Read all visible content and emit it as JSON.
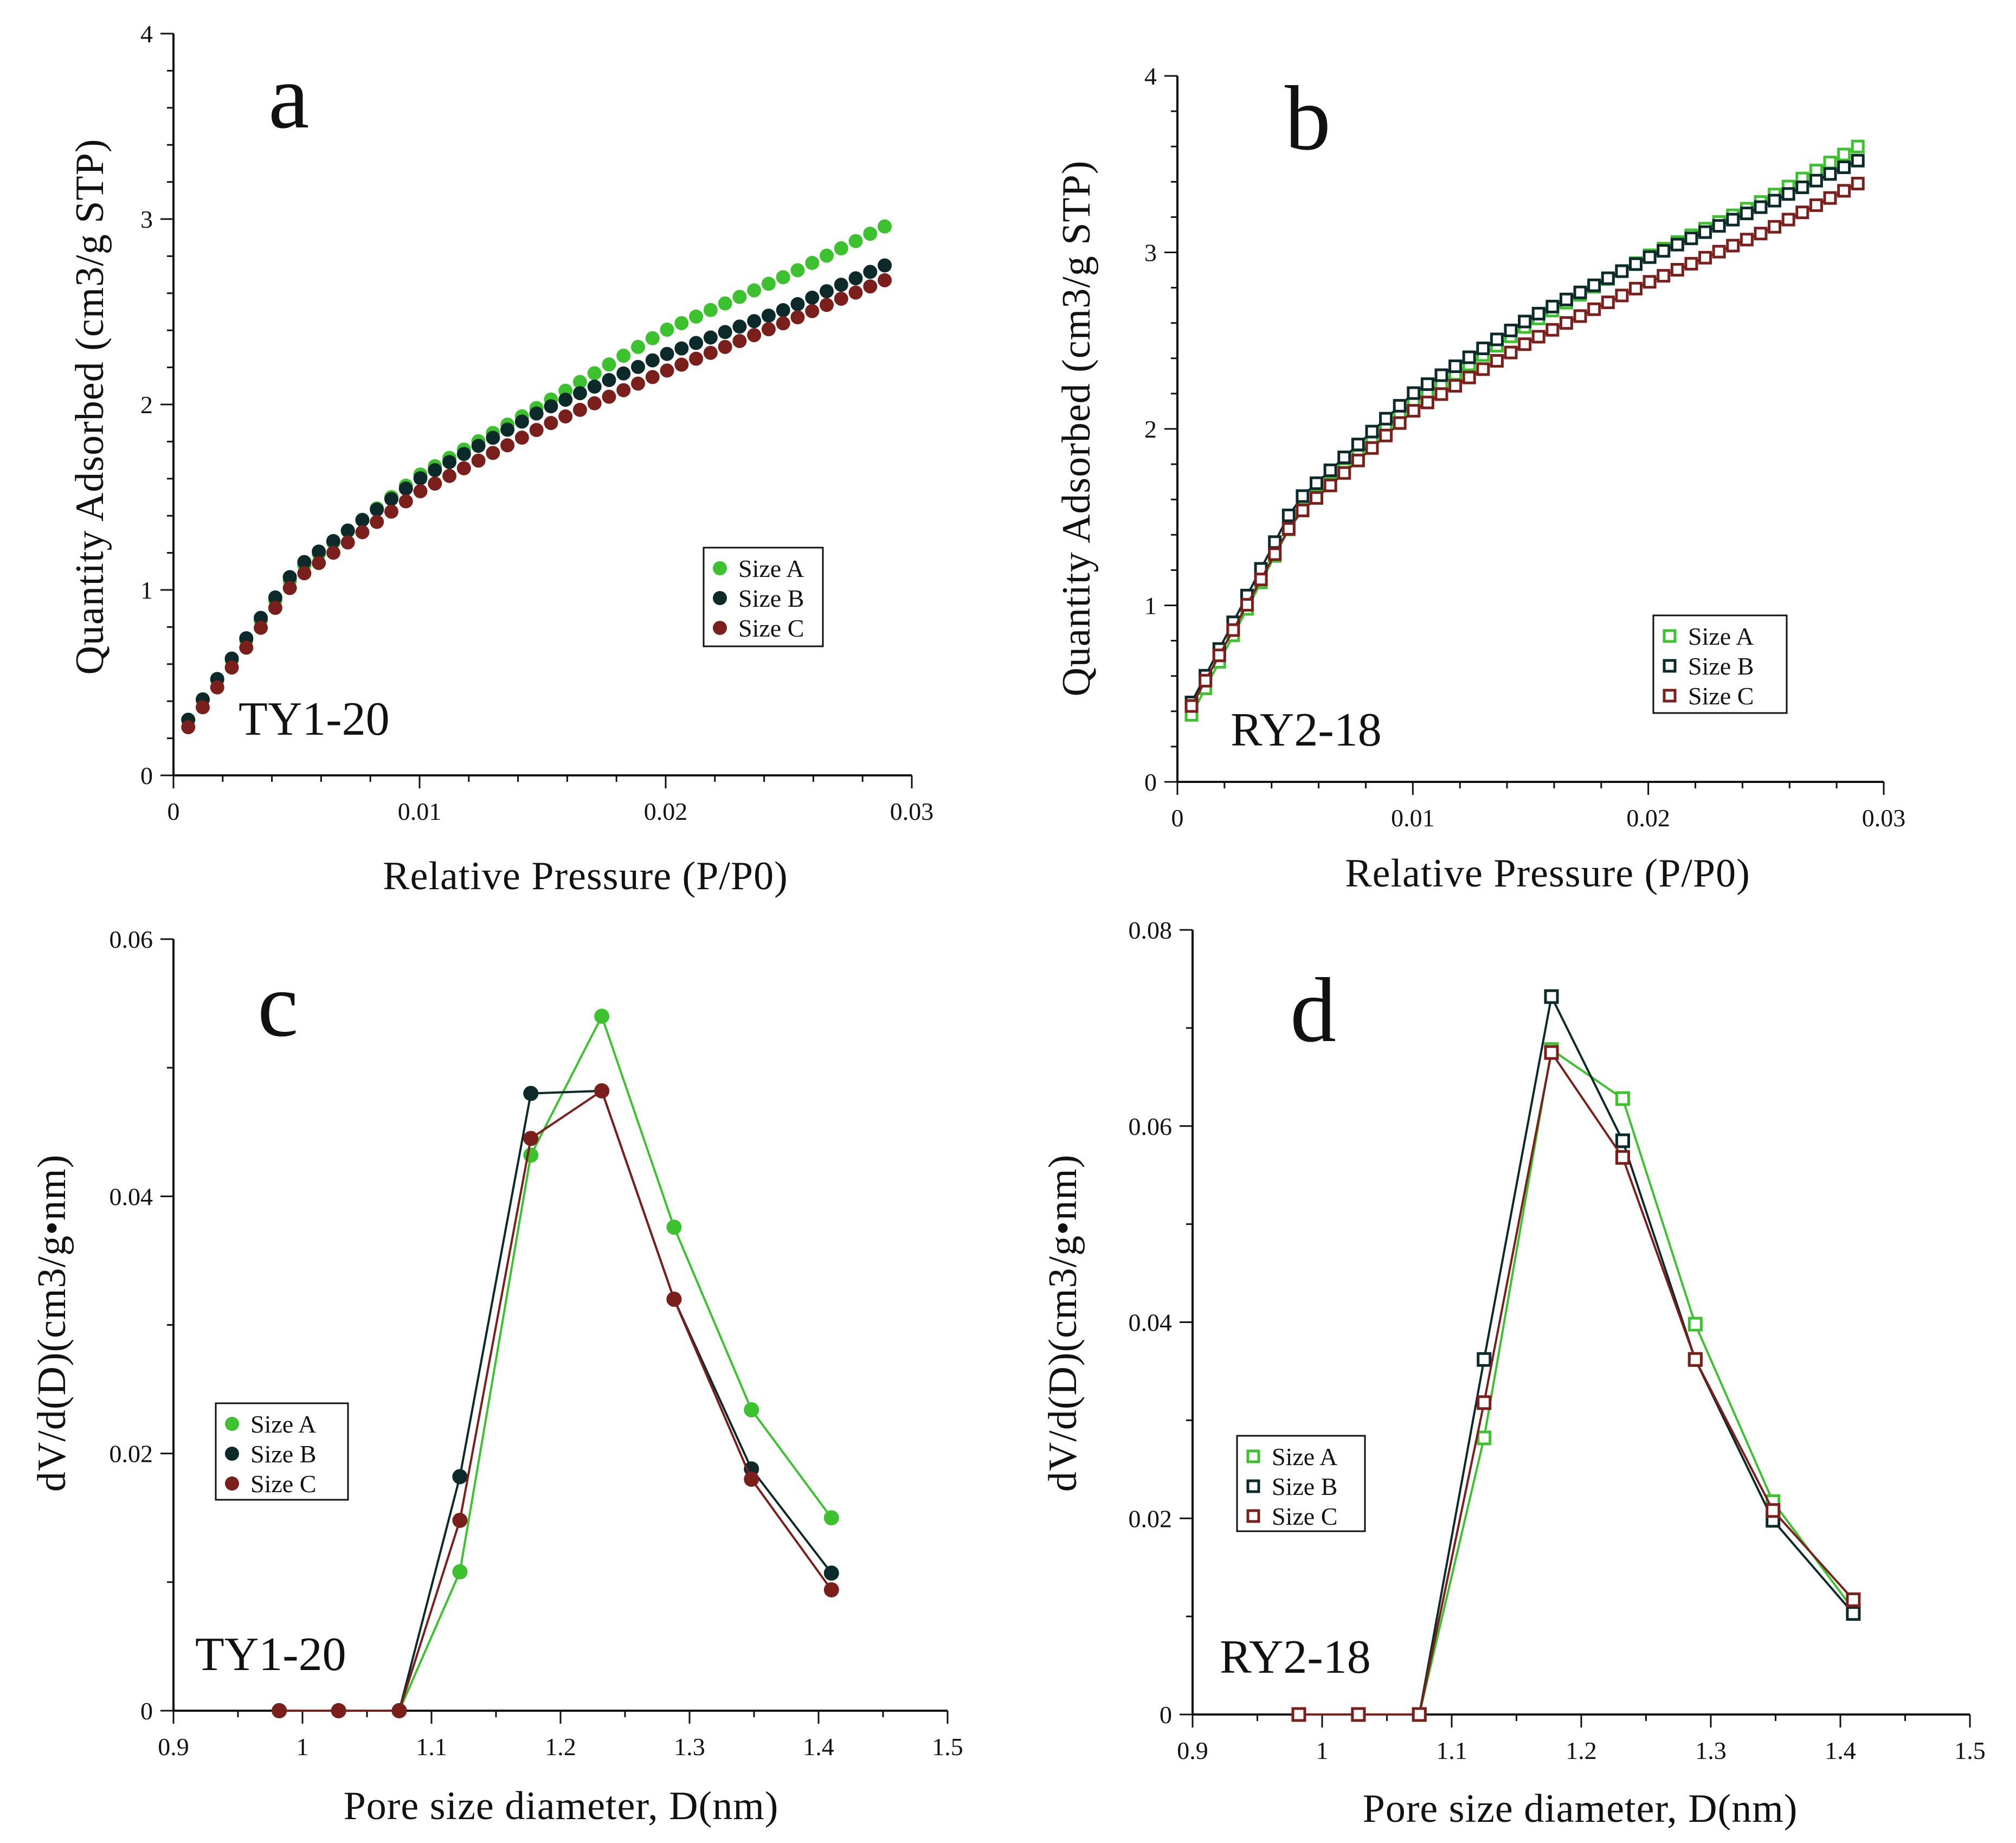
{
  "colors": {
    "size_a": "#3cc22e",
    "size_b": "#0d2a2a",
    "size_c": "#7a1f1c",
    "axis": "#111111"
  },
  "chart_data": [
    {
      "panel": "a",
      "type": "scatter",
      "sample": "TY1-20",
      "marker": "circle",
      "title": "",
      "xlabel": "Relative Pressure (P/P0)",
      "ylabel": "Quantity Adsorbed (cm3/g STP)",
      "xlim": [
        0,
        0.03
      ],
      "ylim": [
        0,
        4
      ],
      "xticks": [
        0,
        0.01,
        0.02,
        0.03
      ],
      "xtick_labels": [
        "0",
        "0.01",
        "0.02",
        "0.03"
      ],
      "yticks": [
        0,
        1,
        2,
        3,
        4
      ],
      "ytick_labels": [
        "0",
        "1",
        "2",
        "3",
        "4"
      ],
      "legend": [
        "Size A",
        "Size B",
        "Size C"
      ],
      "legend_position": "right-middle",
      "connected": false,
      "curve_model": {
        "p_min": 0.0006,
        "p_max": 0.0289,
        "points": 49
      },
      "series": [
        {
          "name": "Size A",
          "color_key": "size_a",
          "values_at_p": [
            [
              0.0006,
              0.3
            ],
            [
              0.005,
              1.1
            ],
            [
              0.01,
              1.62
            ],
            [
              0.015,
              2.0
            ],
            [
              0.02,
              2.4
            ],
            [
              0.025,
              2.7
            ],
            [
              0.0289,
              2.96
            ]
          ]
        },
        {
          "name": "Size B",
          "color_key": "size_b",
          "values_at_p": [
            [
              0.0006,
              0.3
            ],
            [
              0.005,
              1.12
            ],
            [
              0.01,
              1.6
            ],
            [
              0.015,
              1.97
            ],
            [
              0.02,
              2.27
            ],
            [
              0.025,
              2.52
            ],
            [
              0.0289,
              2.75
            ]
          ]
        },
        {
          "name": "Size C",
          "color_key": "size_c",
          "values_at_p": [
            [
              0.0006,
              0.26
            ],
            [
              0.005,
              1.06
            ],
            [
              0.01,
              1.53
            ],
            [
              0.015,
              1.88
            ],
            [
              0.02,
              2.18
            ],
            [
              0.025,
              2.45
            ],
            [
              0.0289,
              2.67
            ]
          ]
        }
      ]
    },
    {
      "panel": "b",
      "type": "scatter",
      "sample": "RY2-18",
      "marker": "square",
      "title": "",
      "xlabel": "Relative Pressure (P/P0)",
      "ylabel": "Quantity Adsorbed (cm3/g STP)",
      "xlim": [
        0,
        0.03
      ],
      "ylim": [
        0,
        4
      ],
      "xticks": [
        0,
        0.01,
        0.02,
        0.03
      ],
      "xtick_labels": [
        "0",
        "0.01",
        "0.02",
        "0.03"
      ],
      "yticks": [
        0,
        1,
        2,
        3,
        4
      ],
      "ytick_labels": [
        "0",
        "1",
        "2",
        "3",
        "4"
      ],
      "legend": [
        "Size A",
        "Size B",
        "Size C"
      ],
      "legend_position": "bottom-right",
      "connected": true,
      "curve_model": {
        "p_min": 0.0006,
        "p_max": 0.0289,
        "points": 49
      },
      "series": [
        {
          "name": "Size A",
          "color_key": "size_a",
          "values_at_p": [
            [
              0.0006,
              0.38
            ],
            [
              0.005,
              1.5
            ],
            [
              0.01,
              2.15
            ],
            [
              0.015,
              2.6
            ],
            [
              0.02,
              2.98
            ],
            [
              0.025,
              3.3
            ],
            [
              0.0289,
              3.6
            ]
          ]
        },
        {
          "name": "Size B",
          "color_key": "size_b",
          "values_at_p": [
            [
              0.0006,
              0.45
            ],
            [
              0.005,
              1.58
            ],
            [
              0.01,
              2.2
            ],
            [
              0.015,
              2.63
            ],
            [
              0.02,
              2.97
            ],
            [
              0.025,
              3.27
            ],
            [
              0.0289,
              3.52
            ]
          ]
        },
        {
          "name": "Size C",
          "color_key": "size_c",
          "values_at_p": [
            [
              0.0006,
              0.43
            ],
            [
              0.005,
              1.5
            ],
            [
              0.01,
              2.1
            ],
            [
              0.015,
              2.5
            ],
            [
              0.02,
              2.83
            ],
            [
              0.025,
              3.12
            ],
            [
              0.0289,
              3.39
            ]
          ]
        }
      ]
    },
    {
      "panel": "c",
      "type": "line",
      "sample": "TY1-20",
      "marker": "circle",
      "title": "",
      "xlabel": "Pore size diameter, D(nm)",
      "ylabel": "dV/d(D)(cm3/g•nm)",
      "xlim": [
        0.9,
        1.5
      ],
      "ylim": [
        0,
        0.06
      ],
      "xticks": [
        0.9,
        1.0,
        1.1,
        1.2,
        1.3,
        1.4,
        1.5
      ],
      "xtick_labels": [
        "0.9",
        "1",
        "1.1",
        "1.2",
        "1.3",
        "1.4",
        "1.5"
      ],
      "yticks": [
        0,
        0.02,
        0.04,
        0.06
      ],
      "ytick_labels": [
        "0",
        "0.02",
        "0.04",
        "0.06"
      ],
      "legend": [
        "Size A",
        "Size B",
        "Size C"
      ],
      "legend_position": "left-middle",
      "x": [
        0.982,
        1.028,
        1.075,
        1.122,
        1.177,
        1.232,
        1.288,
        1.348,
        1.41
      ],
      "series": [
        {
          "name": "Size A",
          "color_key": "size_a",
          "values": [
            0,
            0,
            0,
            0.0108,
            0.0432,
            0.054,
            0.0376,
            0.0234,
            0.015
          ]
        },
        {
          "name": "Size B",
          "color_key": "size_b",
          "values": [
            0,
            0,
            0,
            0.0182,
            0.048,
            0.0482,
            0.032,
            0.0188,
            0.0107
          ]
        },
        {
          "name": "Size C",
          "color_key": "size_c",
          "values": [
            0,
            0,
            0,
            0.0148,
            0.0445,
            0.0482,
            0.032,
            0.018,
            0.0094
          ]
        }
      ]
    },
    {
      "panel": "d",
      "type": "line",
      "sample": "RY2-18",
      "marker": "square",
      "title": "",
      "xlabel": "Pore size diameter, D(nm)",
      "ylabel": "dV/d(D)(cm3/g•nm)",
      "xlim": [
        0.9,
        1.5
      ],
      "ylim": [
        0,
        0.08
      ],
      "xticks": [
        0.9,
        1.0,
        1.1,
        1.2,
        1.3,
        1.4,
        1.5
      ],
      "xtick_labels": [
        "0.9",
        "1",
        "1.1",
        "1.2",
        "1.3",
        "1.4",
        "1.5"
      ],
      "yticks": [
        0,
        0.02,
        0.04,
        0.06,
        0.08
      ],
      "ytick_labels": [
        "0",
        "0.02",
        "0.04",
        "0.06",
        "0.08"
      ],
      "legend": [
        "Size A",
        "Size B",
        "Size C"
      ],
      "legend_position": "left-bottom",
      "x": [
        0.982,
        1.028,
        1.075,
        1.125,
        1.177,
        1.232,
        1.288,
        1.348,
        1.41
      ],
      "series": [
        {
          "name": "Size A",
          "color_key": "size_a",
          "values": [
            0,
            0,
            0,
            0.0282,
            0.0678,
            0.0628,
            0.0398,
            0.0217,
            0.0107
          ]
        },
        {
          "name": "Size B",
          "color_key": "size_b",
          "values": [
            0,
            0,
            0,
            0.0362,
            0.0732,
            0.0585,
            0.0362,
            0.0198,
            0.0103
          ]
        },
        {
          "name": "Size C",
          "color_key": "size_c",
          "values": [
            0,
            0,
            0,
            0.0318,
            0.0675,
            0.0568,
            0.0362,
            0.0208,
            0.0117
          ]
        }
      ]
    }
  ]
}
